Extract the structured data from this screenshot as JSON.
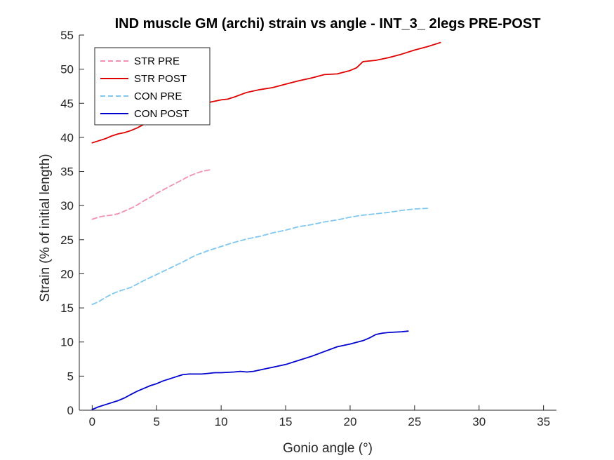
{
  "chart_data": {
    "type": "line",
    "title": "IND muscle GM (archi) strain vs angle - INT_3_ 2legs PRE-POST",
    "xlabel": "Gonio angle (°)",
    "ylabel": "Strain (% of initial length)",
    "xlim": [
      -1,
      36
    ],
    "ylim": [
      0,
      55
    ],
    "x_ticks": [
      0,
      5,
      10,
      15,
      20,
      25,
      30,
      35
    ],
    "y_ticks": [
      0,
      5,
      10,
      15,
      20,
      25,
      30,
      35,
      40,
      45,
      50,
      55
    ],
    "grid": false,
    "legend_position": "top-left",
    "series": [
      {
        "name": "STR PRE",
        "color": "#f48fb1",
        "style": "dashed",
        "points": [
          [
            0,
            28.0
          ],
          [
            0.5,
            28.3
          ],
          [
            1,
            28.5
          ],
          [
            1.5,
            28.6
          ],
          [
            2,
            28.8
          ],
          [
            2.5,
            29.2
          ],
          [
            3,
            29.6
          ],
          [
            3.5,
            30.1
          ],
          [
            4,
            30.7
          ],
          [
            4.5,
            31.2
          ],
          [
            5,
            31.8
          ],
          [
            5.5,
            32.3
          ],
          [
            6,
            32.8
          ],
          [
            6.5,
            33.3
          ],
          [
            7,
            33.8
          ],
          [
            7.5,
            34.3
          ],
          [
            8,
            34.7
          ],
          [
            8.5,
            35.0
          ],
          [
            9,
            35.2
          ],
          [
            9.3,
            35.3
          ]
        ]
      },
      {
        "name": "STR POST",
        "color": "#e00000",
        "style": "solid",
        "points": [
          [
            0,
            39.2
          ],
          [
            0.5,
            39.5
          ],
          [
            1,
            39.8
          ],
          [
            1.5,
            40.2
          ],
          [
            2,
            40.5
          ],
          [
            2.5,
            40.7
          ],
          [
            3,
            41.0
          ],
          [
            3.5,
            41.4
          ],
          [
            4,
            41.9
          ],
          [
            4.5,
            42.3
          ],
          [
            5,
            42.8
          ],
          [
            6,
            43.5
          ],
          [
            7,
            44.0
          ],
          [
            8,
            44.6
          ],
          [
            9,
            45.1
          ],
          [
            10,
            45.5
          ],
          [
            10.5,
            45.6
          ],
          [
            11,
            45.9
          ],
          [
            12,
            46.6
          ],
          [
            13,
            47.0
          ],
          [
            14,
            47.3
          ],
          [
            15,
            47.8
          ],
          [
            16,
            48.3
          ],
          [
            17,
            48.7
          ],
          [
            18,
            49.2
          ],
          [
            19,
            49.3
          ],
          [
            20,
            49.8
          ],
          [
            20.5,
            50.2
          ],
          [
            21,
            51.1
          ],
          [
            22,
            51.3
          ],
          [
            23,
            51.7
          ],
          [
            24,
            52.2
          ],
          [
            25,
            52.8
          ],
          [
            26,
            53.3
          ],
          [
            27,
            53.9
          ]
        ]
      },
      {
        "name": "CON PRE",
        "color": "#7ec8f0",
        "style": "dashed",
        "points": [
          [
            0,
            15.5
          ],
          [
            0.5,
            15.9
          ],
          [
            1,
            16.5
          ],
          [
            1.5,
            17.0
          ],
          [
            2,
            17.4
          ],
          [
            2.5,
            17.7
          ],
          [
            3,
            18.0
          ],
          [
            4,
            19.0
          ],
          [
            5,
            19.9
          ],
          [
            6,
            20.8
          ],
          [
            7,
            21.7
          ],
          [
            8,
            22.7
          ],
          [
            9,
            23.4
          ],
          [
            10,
            24.0
          ],
          [
            11,
            24.6
          ],
          [
            12,
            25.1
          ],
          [
            13,
            25.5
          ],
          [
            14,
            26.0
          ],
          [
            15,
            26.4
          ],
          [
            16,
            26.9
          ],
          [
            17,
            27.2
          ],
          [
            18,
            27.6
          ],
          [
            19,
            27.9
          ],
          [
            20,
            28.3
          ],
          [
            21,
            28.6
          ],
          [
            22,
            28.8
          ],
          [
            23,
            29.0
          ],
          [
            24,
            29.3
          ],
          [
            25,
            29.5
          ],
          [
            26,
            29.6
          ]
        ]
      },
      {
        "name": "CON POST",
        "color": "#0000d0",
        "style": "solid",
        "points": [
          [
            0,
            0.1
          ],
          [
            0.5,
            0.5
          ],
          [
            1,
            0.8
          ],
          [
            1.5,
            1.1
          ],
          [
            2,
            1.4
          ],
          [
            2.5,
            1.8
          ],
          [
            3,
            2.3
          ],
          [
            3.5,
            2.8
          ],
          [
            4,
            3.2
          ],
          [
            4.5,
            3.6
          ],
          [
            5,
            3.9
          ],
          [
            5.5,
            4.3
          ],
          [
            6,
            4.6
          ],
          [
            6.5,
            4.9
          ],
          [
            7,
            5.2
          ],
          [
            7.5,
            5.3
          ],
          [
            8,
            5.3
          ],
          [
            8.5,
            5.3
          ],
          [
            9,
            5.4
          ],
          [
            9.5,
            5.5
          ],
          [
            10,
            5.5
          ],
          [
            11,
            5.6
          ],
          [
            11.5,
            5.7
          ],
          [
            12,
            5.6
          ],
          [
            12.5,
            5.7
          ],
          [
            13,
            5.9
          ],
          [
            14,
            6.3
          ],
          [
            15,
            6.7
          ],
          [
            16,
            7.3
          ],
          [
            17,
            7.9
          ],
          [
            18,
            8.6
          ],
          [
            19,
            9.3
          ],
          [
            20,
            9.7
          ],
          [
            21,
            10.2
          ],
          [
            21.5,
            10.6
          ],
          [
            22,
            11.1
          ],
          [
            22.5,
            11.3
          ],
          [
            23,
            11.4
          ],
          [
            24,
            11.5
          ],
          [
            24.5,
            11.6
          ]
        ]
      }
    ]
  }
}
